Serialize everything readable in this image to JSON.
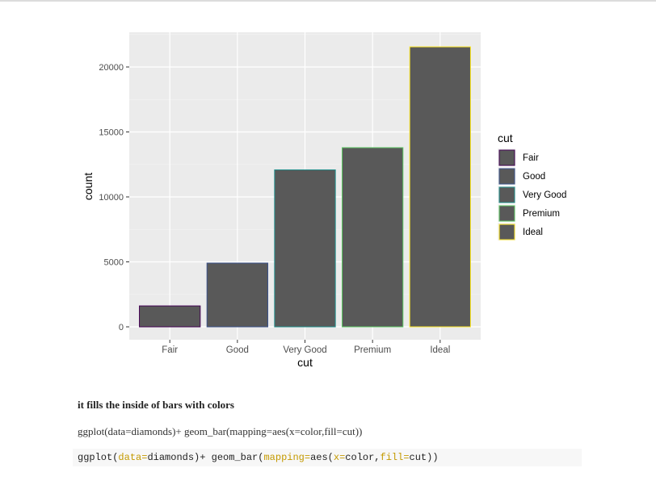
{
  "chart_data": {
    "type": "bar",
    "categories": [
      "Fair",
      "Good",
      "Very Good",
      "Premium",
      "Ideal"
    ],
    "values": [
      1610,
      4906,
      12082,
      13791,
      21551
    ],
    "xlabel": "cut",
    "ylabel": "count",
    "ylim": [
      0,
      22500
    ],
    "yticks": [
      0,
      5000,
      10000,
      15000,
      20000
    ],
    "ytick_labels": [
      "0",
      "5000",
      "10000",
      "15000",
      "20000"
    ],
    "fill_color": "#595959",
    "outline_colors": [
      "#440154",
      "#3b528b",
      "#21908c",
      "#5dc863",
      "#fde725"
    ],
    "grid": true,
    "legend": {
      "title": "cut",
      "position": "right",
      "entries": [
        "Fair",
        "Good",
        "Very Good",
        "Premium",
        "Ideal"
      ]
    }
  },
  "text": {
    "caption": "it fills the inside of bars with colors",
    "code_line": "ggplot(data=diamonds)+ geom_bar(mapping=aes(x=color,fill=cut))"
  },
  "code_block": [
    {
      "t": "ggplot(",
      "arg": false
    },
    {
      "t": "data=",
      "arg": true
    },
    {
      "t": "diamonds)+ geom_bar(",
      "arg": false
    },
    {
      "t": "mapping=",
      "arg": true
    },
    {
      "t": "aes(",
      "arg": false
    },
    {
      "t": "x=",
      "arg": true
    },
    {
      "t": "color,",
      "arg": false
    },
    {
      "t": "fill=",
      "arg": true
    },
    {
      "t": "cut))",
      "arg": false
    }
  ]
}
